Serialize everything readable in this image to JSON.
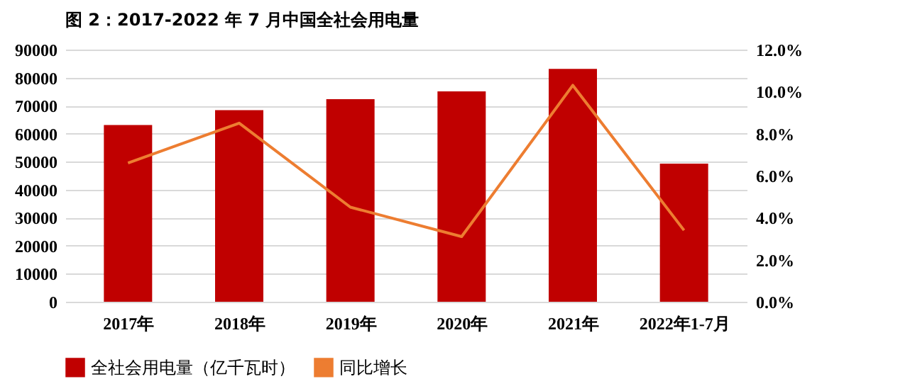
{
  "chart_data": {
    "type": "bar",
    "title": "图 2：2017-2022 年 7 月中国全社会用电量",
    "categories": [
      "2017年",
      "2018年",
      "2019年",
      "2020年",
      "2021年",
      "2022年1-7月"
    ],
    "series": [
      {
        "name": "全社会用电量（亿千瓦时）",
        "color": "#c00000",
        "values": [
          63100,
          68400,
          72300,
          75100,
          83100,
          49300
        ]
      },
      {
        "name": "同比增长",
        "color": "#ed7d31",
        "type": "line",
        "axis": "y2",
        "values": [
          6.6,
          8.5,
          4.5,
          3.1,
          10.3,
          3.4
        ]
      }
    ],
    "ylim": [
      0,
      90000
    ],
    "yticks": [
      0,
      10000,
      20000,
      30000,
      40000,
      50000,
      60000,
      70000,
      80000,
      90000
    ],
    "y2lim": [
      0,
      12
    ],
    "y2ticks": [
      {
        "value": 0,
        "label": "0.0%"
      },
      {
        "value": 2,
        "label": "2.0%"
      },
      {
        "value": 4,
        "label": "4.0%"
      },
      {
        "value": 6,
        "label": "6.0%"
      },
      {
        "value": 8,
        "label": "8.0%"
      },
      {
        "value": 10,
        "label": "10.0%"
      },
      {
        "value": 12,
        "label": "12.0%"
      }
    ],
    "grid": "y",
    "legend": "bottom",
    "marker": "none",
    "line_style": "solid"
  }
}
